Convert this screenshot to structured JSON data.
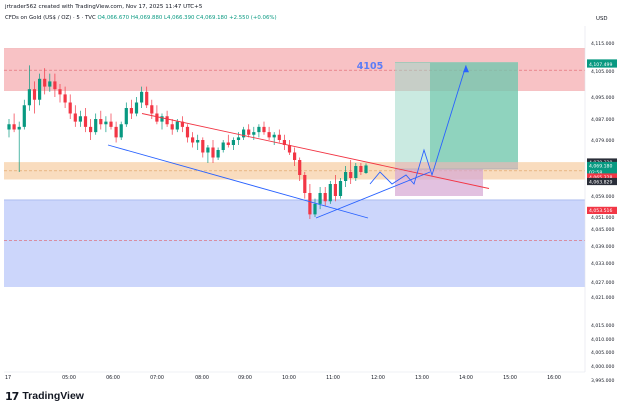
{
  "header": {
    "credit": "jrtrader562 created with TradingView.com, Nov 17, 2025 11:47 UTC+5",
    "symbol": "CFDs on Gold (US$ / OZ) · 5 · TVC",
    "ohlc": "O4,066.670 H4,069.880 L4,066.390 C4,069.180 +2.550 (+0.06%)",
    "currency": "USD"
  },
  "brand": {
    "logo": "17",
    "name": "TradingView"
  },
  "annotation": {
    "target_label": "4105"
  },
  "chart_data": {
    "type": "candlestick",
    "title": "CFDs on Gold (US$ / OZ) · 5 · TVC",
    "ylim": [
      3994,
      4118
    ],
    "y_ticks": [
      4115,
      4105,
      4095,
      4087,
      4079,
      4071,
      4059,
      4051,
      4045,
      4039,
      4033,
      4027,
      4021,
      4015,
      4010,
      4005,
      4000,
      3995
    ],
    "y_tick_labels": [
      "4,115.000",
      "4,105.000",
      "4,095.000",
      "4,087.000",
      "4,079.000",
      "4,071.000",
      "4,059.000",
      "4,051.000",
      "4,045.000",
      "4,039.000",
      "4,033.000",
      "4,027.000",
      "4,021.000",
      "4,015.000",
      "4,010.000",
      "4,005.000",
      "4,000.000",
      "3,995.000"
    ],
    "x_labels": [
      "17",
      "05:00",
      "06:00",
      "07:00",
      "08:00",
      "09:00",
      "10:00",
      "11:00",
      "12:00",
      "13:00",
      "14:00",
      "15:00",
      "16:00"
    ],
    "price_labels": [
      {
        "value": 4107.867,
        "text": "4,107.867",
        "color": "#089981"
      },
      {
        "value": 4107.499,
        "text": "4,107.499",
        "color": "#089981"
      },
      {
        "value": 4070.329,
        "text": "4,070.329",
        "color": "#2a2e39"
      },
      {
        "value": 4069.18,
        "text": "4,069.180",
        "color": "#089981"
      },
      {
        "value": 4067.0,
        "text": "02:58",
        "color": "#089981"
      },
      {
        "value": 4065.328,
        "text": "4,065.328",
        "color": "#f23645"
      },
      {
        "value": 4063.829,
        "text": "4,063.829",
        "color": "#2a2e39"
      },
      {
        "value": 4053.516,
        "text": "4,053.516",
        "color": "#f23645"
      }
    ],
    "zones": [
      {
        "name": "supply",
        "from": 4097.5,
        "to": 4113,
        "color": "#f7b7bb"
      },
      {
        "name": "mid",
        "from": 4064.5,
        "to": 4070.3,
        "color": "#f8d6b3"
      },
      {
        "name": "demand",
        "from": 4025,
        "to": 4057.5,
        "color": "#c3cffa"
      }
    ],
    "candles": [
      {
        "o": 4083,
        "h": 4087,
        "l": 4080,
        "c": 4085
      },
      {
        "o": 4085,
        "h": 4089,
        "l": 4082,
        "c": 4083
      },
      {
        "o": 4083,
        "h": 4086,
        "l": 4067,
        "c": 4084
      },
      {
        "o": 4084,
        "h": 4094,
        "l": 4083,
        "c": 4092
      },
      {
        "o": 4092,
        "h": 4107,
        "l": 4090,
        "c": 4098
      },
      {
        "o": 4098,
        "h": 4101,
        "l": 4089,
        "c": 4094
      },
      {
        "o": 4094,
        "h": 4104,
        "l": 4092,
        "c": 4102
      },
      {
        "o": 4102,
        "h": 4106,
        "l": 4096,
        "c": 4099
      },
      {
        "o": 4099,
        "h": 4104,
        "l": 4097,
        "c": 4101
      },
      {
        "o": 4101,
        "h": 4104,
        "l": 4095,
        "c": 4098
      },
      {
        "o": 4098,
        "h": 4100,
        "l": 4093,
        "c": 4096
      },
      {
        "o": 4096,
        "h": 4099,
        "l": 4091,
        "c": 4093
      },
      {
        "o": 4093,
        "h": 4096,
        "l": 4087,
        "c": 4089
      },
      {
        "o": 4089,
        "h": 4092,
        "l": 4084,
        "c": 4086
      },
      {
        "o": 4086,
        "h": 4090,
        "l": 4084,
        "c": 4088
      },
      {
        "o": 4088,
        "h": 4091,
        "l": 4082,
        "c": 4084
      },
      {
        "o": 4084,
        "h": 4087,
        "l": 4079,
        "c": 4082
      },
      {
        "o": 4082,
        "h": 4089,
        "l": 4081,
        "c": 4087
      },
      {
        "o": 4087,
        "h": 4090,
        "l": 4083,
        "c": 4085
      },
      {
        "o": 4085,
        "h": 4088,
        "l": 4082,
        "c": 4086
      },
      {
        "o": 4086,
        "h": 4089,
        "l": 4083,
        "c": 4084
      },
      {
        "o": 4084,
        "h": 4086,
        "l": 4078,
        "c": 4080
      },
      {
        "o": 4080,
        "h": 4086,
        "l": 4079,
        "c": 4085
      },
      {
        "o": 4085,
        "h": 4093,
        "l": 4084,
        "c": 4091
      },
      {
        "o": 4091,
        "h": 4094,
        "l": 4087,
        "c": 4089
      },
      {
        "o": 4089,
        "h": 4095,
        "l": 4088,
        "c": 4093
      },
      {
        "o": 4093,
        "h": 4099,
        "l": 4091,
        "c": 4097
      },
      {
        "o": 4097,
        "h": 4099,
        "l": 4091,
        "c": 4092
      },
      {
        "o": 4092,
        "h": 4094,
        "l": 4087,
        "c": 4089
      },
      {
        "o": 4089,
        "h": 4092,
        "l": 4085,
        "c": 4086
      },
      {
        "o": 4086,
        "h": 4089,
        "l": 4083,
        "c": 4088
      },
      {
        "o": 4088,
        "h": 4090,
        "l": 4084,
        "c": 4085
      },
      {
        "o": 4085,
        "h": 4087,
        "l": 4081,
        "c": 4083
      },
      {
        "o": 4083,
        "h": 4087,
        "l": 4082,
        "c": 4086
      },
      {
        "o": 4086,
        "h": 4088,
        "l": 4082,
        "c": 4084
      },
      {
        "o": 4084,
        "h": 4085,
        "l": 4078,
        "c": 4080
      },
      {
        "o": 4080,
        "h": 4082,
        "l": 4076,
        "c": 4078
      },
      {
        "o": 4078,
        "h": 4081,
        "l": 4075,
        "c": 4079
      },
      {
        "o": 4079,
        "h": 4080,
        "l": 4072,
        "c": 4074
      },
      {
        "o": 4074,
        "h": 4077,
        "l": 4070,
        "c": 4076
      },
      {
        "o": 4076,
        "h": 4079,
        "l": 4070,
        "c": 4072
      },
      {
        "o": 4072,
        "h": 4076,
        "l": 4071,
        "c": 4075
      },
      {
        "o": 4075,
        "h": 4079,
        "l": 4074,
        "c": 4078
      },
      {
        "o": 4078,
        "h": 4081,
        "l": 4076,
        "c": 4077
      },
      {
        "o": 4077,
        "h": 4080,
        "l": 4075,
        "c": 4079
      },
      {
        "o": 4079,
        "h": 4082,
        "l": 4077,
        "c": 4080
      },
      {
        "o": 4080,
        "h": 4084,
        "l": 4079,
        "c": 4083
      },
      {
        "o": 4083,
        "h": 4085,
        "l": 4080,
        "c": 4081
      },
      {
        "o": 4081,
        "h": 4084,
        "l": 4079,
        "c": 4082
      },
      {
        "o": 4082,
        "h": 4085,
        "l": 4080,
        "c": 4084
      },
      {
        "o": 4084,
        "h": 4086,
        "l": 4081,
        "c": 4082
      },
      {
        "o": 4082,
        "h": 4084,
        "l": 4079,
        "c": 4080
      },
      {
        "o": 4080,
        "h": 4082,
        "l": 4077,
        "c": 4081
      },
      {
        "o": 4081,
        "h": 4083,
        "l": 4078,
        "c": 4079
      },
      {
        "o": 4079,
        "h": 4081,
        "l": 4075,
        "c": 4077
      },
      {
        "o": 4077,
        "h": 4079,
        "l": 4073,
        "c": 4074
      },
      {
        "o": 4074,
        "h": 4076,
        "l": 4069,
        "c": 4071
      },
      {
        "o": 4071,
        "h": 4072,
        "l": 4064,
        "c": 4066
      },
      {
        "o": 4066,
        "h": 4067,
        "l": 4058,
        "c": 4060
      },
      {
        "o": 4060,
        "h": 4063,
        "l": 4050,
        "c": 4052
      },
      {
        "o": 4052,
        "h": 4058,
        "l": 4051,
        "c": 4056
      },
      {
        "o": 4056,
        "h": 4062,
        "l": 4054,
        "c": 4060
      },
      {
        "o": 4060,
        "h": 4062,
        "l": 4055,
        "c": 4057
      },
      {
        "o": 4057,
        "h": 4064,
        "l": 4056,
        "c": 4063
      },
      {
        "o": 4063,
        "h": 4066,
        "l": 4057,
        "c": 4059
      },
      {
        "o": 4059,
        "h": 4065,
        "l": 4058,
        "c": 4064
      },
      {
        "o": 4064,
        "h": 4069,
        "l": 4062,
        "c": 4067
      },
      {
        "o": 4067,
        "h": 4071,
        "l": 4063,
        "c": 4065
      },
      {
        "o": 4065,
        "h": 4070,
        "l": 4064,
        "c": 4069
      },
      {
        "o": 4069,
        "h": 4070,
        "l": 4066,
        "c": 4067
      },
      {
        "o": 4066.67,
        "h": 4069.88,
        "l": 4066.39,
        "c": 4069.18
      }
    ],
    "drawings": {
      "position_entry": 4068.0,
      "position_target": 4108.0,
      "position_stop": 4059.0,
      "target_label": "4105"
    }
  }
}
